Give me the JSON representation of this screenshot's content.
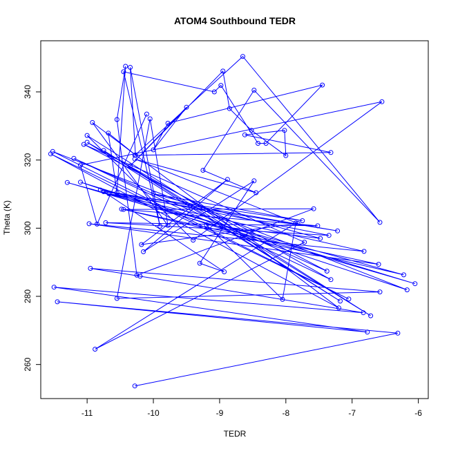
{
  "chart_data": {
    "type": "line",
    "title": "ATOM4 Southbound TEDR",
    "xlabel": "TEDR",
    "ylabel": "Theta (K)",
    "xlim": [
      -11.7,
      -5.85
    ],
    "ylim": [
      250,
      355
    ],
    "x_ticks": [
      -11,
      -10,
      -9,
      -8,
      -7,
      -6
    ],
    "y_ticks": [
      260,
      280,
      300,
      320,
      340
    ],
    "grid": false,
    "legend": "none",
    "series": [
      {
        "marker": "open-circle",
        "color": "#0000ff",
        "points": [
          [
            -10.28,
            253.7
          ],
          [
            -6.31,
            269.2
          ],
          [
            -11.45,
            278.4
          ],
          [
            -6.77,
            269.5
          ],
          [
            -11.5,
            282.7
          ],
          [
            -6.83,
            275.2
          ],
          [
            -10.2,
            285.9
          ],
          [
            -10.95,
            288.2
          ],
          [
            -6.58,
            281.3
          ],
          [
            -10.55,
            279.4
          ],
          [
            -10.05,
            332.1
          ],
          [
            -9.78,
            300.8
          ],
          [
            -10.92,
            331.0
          ],
          [
            -7.2,
            276.6
          ],
          [
            -11.55,
            321.8
          ],
          [
            -7.05,
            279.2
          ],
          [
            -11.52,
            322.5
          ],
          [
            -6.17,
            281.9
          ],
          [
            -11.1,
            313.5
          ],
          [
            -6.05,
            283.7
          ],
          [
            -11.3,
            313.4
          ],
          [
            -6.22,
            286.3
          ],
          [
            -10.48,
            305.6
          ],
          [
            -6.6,
            289.4
          ],
          [
            -10.97,
            301.3
          ],
          [
            -6.82,
            293.2
          ],
          [
            -10.67,
            310.1
          ],
          [
            -7.22,
            299.2
          ],
          [
            -10.8,
            311.2
          ],
          [
            -7.35,
            297.9
          ],
          [
            -10.72,
            301.6
          ],
          [
            -7.52,
            300.7
          ],
          [
            -10.45,
            305.5
          ],
          [
            -7.58,
            305.7
          ],
          [
            -10.25,
            286.2
          ],
          [
            -10.55,
            331.9
          ],
          [
            -10.42,
            347.5
          ],
          [
            -10.55,
            310.4
          ],
          [
            -10.68,
            327.9
          ],
          [
            -10.27,
            321.5
          ],
          [
            -10.35,
            347.2
          ],
          [
            -9.9,
            300.6
          ],
          [
            -10.45,
            345.9
          ],
          [
            -9.08,
            340.0
          ],
          [
            -8.98,
            341.9
          ],
          [
            -8.42,
            324.9
          ],
          [
            -8.3,
            324.9
          ],
          [
            -7.45,
            342.0
          ],
          [
            -9.78,
            330.8
          ],
          [
            -10.0,
            323.0
          ],
          [
            -9.5,
            335.5
          ],
          [
            -10.35,
            318.3
          ],
          [
            -8.95,
            346.1
          ],
          [
            -8.85,
            335.1
          ],
          [
            -8.52,
            328.7
          ],
          [
            -8.0,
            321.3
          ],
          [
            -8.02,
            328.7
          ],
          [
            -8.62,
            327.4
          ],
          [
            -7.32,
            322.2
          ],
          [
            -10.28,
            321.4
          ],
          [
            -8.65,
            350.4
          ],
          [
            -6.58,
            301.7
          ],
          [
            -8.48,
            340.5
          ],
          [
            -9.25,
            317.0
          ],
          [
            -8.45,
            310.4
          ],
          [
            -10.28,
            320.3
          ],
          [
            -7.82,
            301.4
          ],
          [
            -10.18,
            295.2
          ],
          [
            -8.88,
            314.3
          ],
          [
            -10.15,
            293.1
          ],
          [
            -8.48,
            313.9
          ],
          [
            -9.3,
            289.7
          ],
          [
            -8.93,
            287.2
          ],
          [
            -10.75,
            310.7
          ],
          [
            -7.75,
            302.2
          ],
          [
            -10.0,
            310.1
          ],
          [
            -7.48,
            297.0
          ],
          [
            -9.2,
            301.0
          ],
          [
            -8.05,
            279.1
          ],
          [
            -7.85,
            301.5
          ],
          [
            -10.88,
            264.5
          ],
          [
            -7.72,
            295.9
          ],
          [
            -11.05,
            324.6
          ],
          [
            -7.38,
            287.4
          ],
          [
            -11.2,
            320.5
          ],
          [
            -7.32,
            284.9
          ],
          [
            -11.0,
            325.2
          ],
          [
            -7.18,
            278.6
          ],
          [
            -10.75,
            322.8
          ],
          [
            -6.72,
            274.3
          ],
          [
            -11.0,
            327.2
          ],
          [
            -9.4,
            296.5
          ],
          [
            -6.55,
            337.1
          ],
          [
            -11.1,
            318.5
          ],
          [
            -10.85,
            301.2
          ],
          [
            -10.1,
            333.5
          ]
        ]
      }
    ]
  }
}
